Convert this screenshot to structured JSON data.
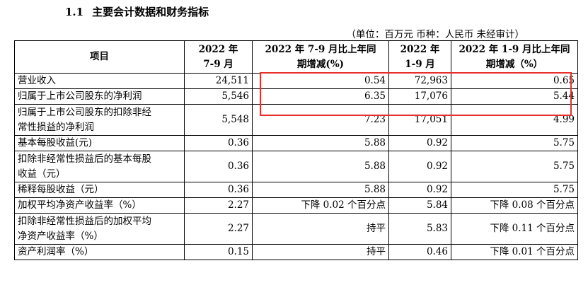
{
  "heading": {
    "number": "1.1",
    "title": "主要会计数据和财务指标"
  },
  "unit_note": "（单位：百万元 币种：人民币 未经审计）",
  "table": {
    "headers": [
      "项目",
      "2022 年\n7-9 月",
      "2022 年 7-9 月比上年同\n期增减(%)",
      "2022 年\n1-9 月",
      "2022 年 1-9 月比上年同\n期增减（%）"
    ],
    "rows": [
      {
        "item": "营业收入",
        "q3": "24,511",
        "q3_change": "0.54",
        "ytd": "72,963",
        "ytd_change": "0.65"
      },
      {
        "item": "归属于上市公司股东的净利润",
        "q3": "5,546",
        "q3_change": "6.35",
        "ytd": "17,076",
        "ytd_change": "5.44"
      },
      {
        "item": "归属于上市公司股东的扣除非经\n常性损益的净利润",
        "q3": "5,548",
        "q3_change": "7.23",
        "ytd": "17,051",
        "ytd_change": "4.99"
      },
      {
        "item": "基本每股收益(元)",
        "q3": "0.36",
        "q3_change": "5.88",
        "ytd": "0.92",
        "ytd_change": "5.75"
      },
      {
        "item": "扣除非经常性损益后的基本每股\n收益（元）",
        "q3": "0.36",
        "q3_change": "5.88",
        "ytd": "0.92",
        "ytd_change": "5.75"
      },
      {
        "item": "稀释每股收益（元）",
        "q3": "0.36",
        "q3_change": "5.88",
        "ytd": "0.92",
        "ytd_change": "5.75"
      },
      {
        "item": "加权平均净资产收益率（%）",
        "q3": "2.27",
        "q3_change": "下降 0.02 个百分点",
        "ytd": "5.84",
        "ytd_change": "下降 0.08 个百分点"
      },
      {
        "item": "扣除非经常性损益后的加权平均\n净资产收益率（%）",
        "q3": "2.27",
        "q3_change": "持平",
        "ytd": "5.83",
        "ytd_change": "下降 0.11 个百分点"
      },
      {
        "item": "资产利润率（%）",
        "q3": "0.15",
        "q3_change": "持平",
        "ytd": "0.46",
        "ytd_change": "下降 0.01 个百分点"
      }
    ]
  },
  "highlight_color": "#e8302a"
}
